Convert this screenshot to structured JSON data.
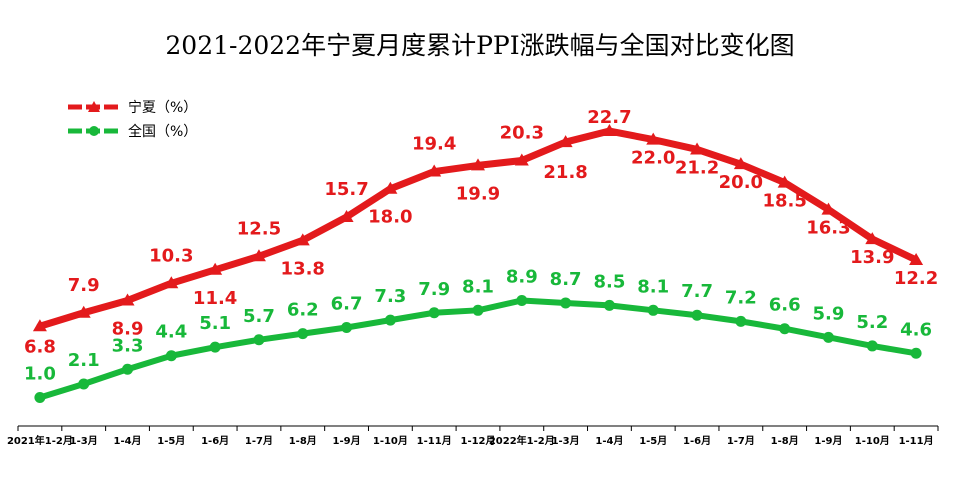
{
  "chart_data": {
    "type": "line",
    "title": "2021-2022年宁夏月度累计PPI涨跌幅与全国对比变化图",
    "xlabel": "",
    "ylabel": "",
    "categories": [
      "2021年1-2月",
      "1-3月",
      "1-4月",
      "1-5月",
      "1-6月",
      "1-7月",
      "1-8月",
      "1-9月",
      "1-10月",
      "1-11月",
      "1-12月",
      "2022年1-2月",
      "1-3月",
      "1-4月",
      "1-5月",
      "1-6月",
      "1-7月",
      "1-8月",
      "1-9月",
      "1-10月",
      "1-11月"
    ],
    "series": [
      {
        "name": "宁夏（%）",
        "color": "#e31a1c",
        "marker": "triangle",
        "values": [
          6.8,
          7.9,
          8.9,
          10.3,
          11.4,
          12.5,
          13.8,
          15.7,
          18.0,
          19.4,
          19.9,
          20.3,
          21.8,
          22.7,
          22.0,
          21.2,
          20.0,
          18.5,
          16.3,
          13.9,
          12.2
        ],
        "labels": [
          "6.8",
          "7.9",
          "8.9",
          "10.3",
          "11.4",
          "12.5",
          "13.8",
          "15.7",
          "18.0",
          "19.4",
          "19.9",
          "20.3",
          "21.8",
          "22.7",
          "22.0",
          "21.2",
          "20.0",
          "18.5",
          "16.3",
          "13.9",
          "12.2"
        ]
      },
      {
        "name": "全国（%）",
        "color": "#18b83a",
        "marker": "circle",
        "values": [
          1.0,
          2.1,
          3.3,
          4.4,
          5.1,
          5.7,
          6.2,
          6.7,
          7.3,
          7.9,
          8.1,
          8.9,
          8.7,
          8.5,
          8.1,
          7.7,
          7.2,
          6.6,
          5.9,
          5.2,
          4.6
        ],
        "labels": [
          "1.0",
          "2.1",
          "3.3",
          "4.4",
          "5.1",
          "5.7",
          "6.2",
          "6.7",
          "7.3",
          "7.9",
          "8.1",
          "8.9",
          "8.7",
          "8.5",
          "8.1",
          "7.7",
          "7.2",
          "6.6",
          "5.9",
          "5.2",
          "4.6"
        ]
      }
    ],
    "label_colors": {
      "ningxia": "#e31a1c",
      "national": "#18b83a"
    },
    "grid": false,
    "legend": "top-left"
  }
}
